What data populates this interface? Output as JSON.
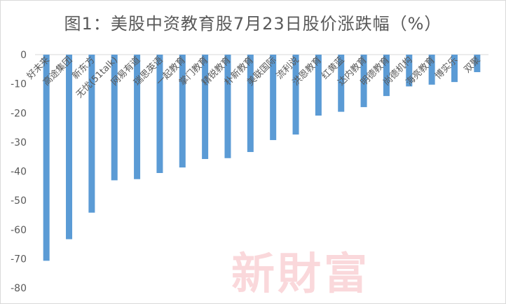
{
  "chart_data": {
    "type": "bar",
    "title": "图1：美股中资教育股7月23日股价涨跌幅（%）",
    "xlabel": "",
    "ylabel": "",
    "ylim": [
      -80,
      0
    ],
    "yticks": [
      0,
      -10,
      -20,
      -30,
      -40,
      -50,
      -60,
      -70,
      -80
    ],
    "grid": false,
    "legend": "none",
    "bar_color": "#5b9bd5",
    "categories": [
      "好未来",
      "高途集团",
      "新东方",
      "无忧(51talk)",
      "网易有道",
      "瑞思英语",
      "一起教育",
      "掌门教育",
      "精锐教育",
      "朴新教育",
      "美联国际",
      "流利说",
      "洪恩教育",
      "红黄蓝",
      "达内教育",
      "明德教育",
      "尚德机构",
      "海亮教育",
      "博实乐",
      "双聚"
    ],
    "values": [
      -70.7,
      -63.3,
      -54.2,
      -43.1,
      -42.7,
      -40.6,
      -38.7,
      -35.8,
      -35.5,
      -33.4,
      -29.3,
      -27.4,
      -20.9,
      -19.6,
      -18.0,
      -14.2,
      -10.9,
      -10.3,
      -9.4,
      -6.0
    ]
  },
  "watermark": "新財富"
}
